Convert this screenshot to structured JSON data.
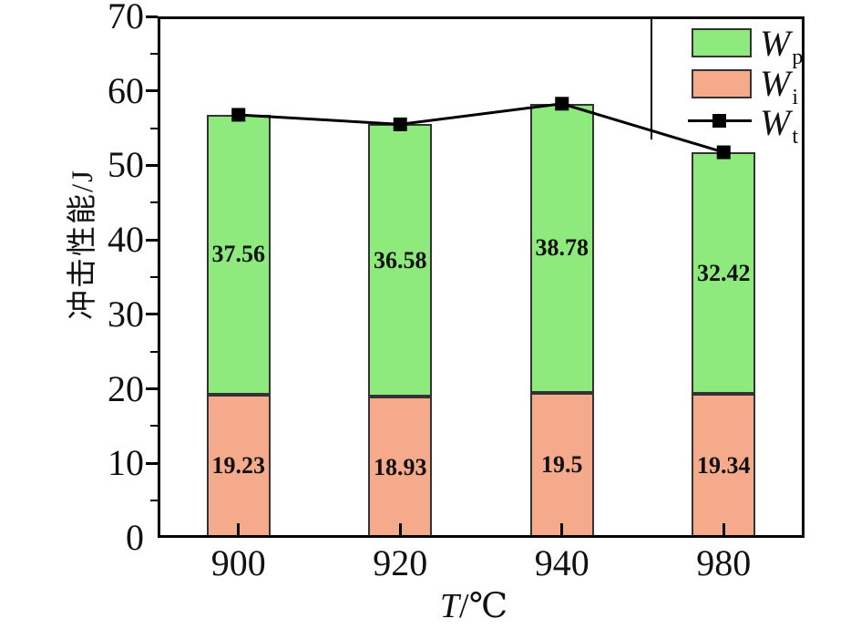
{
  "chart_data": {
    "type": "bar",
    "subtype": "stacked-bars-with-total-line",
    "title": "",
    "xlabel_symbol": "T",
    "xlabel_unit": "/℃",
    "ylabel": "冲击性能/J",
    "categories": [
      "900",
      "920",
      "940",
      "980"
    ],
    "ylim": [
      0,
      70
    ],
    "ytick_major_step": 10,
    "ytick_minor_step": 5,
    "ytick_labels": [
      "0",
      "10",
      "20",
      "30",
      "40",
      "50",
      "60",
      "70"
    ],
    "grid": false,
    "legend_position": "top-right-inside",
    "series": [
      {
        "id": "Wp",
        "type": "bar",
        "symbol": "W",
        "subscript": "p",
        "color": "#8FEA7D",
        "border_color": "#333333",
        "values": [
          37.56,
          36.58,
          38.78,
          32.42
        ],
        "labels": [
          "37.56",
          "36.58",
          "38.78",
          "32.42"
        ]
      },
      {
        "id": "Wi",
        "type": "bar",
        "symbol": "W",
        "subscript": "i",
        "color": "#F5AB8B",
        "border_color": "#333333",
        "values": [
          19.23,
          18.93,
          19.5,
          19.34
        ],
        "labels": [
          "19.23",
          "18.93",
          "19.5",
          "19.34"
        ]
      },
      {
        "id": "Wt",
        "type": "line",
        "symbol": "W",
        "subscript": "t",
        "color": "#000000",
        "marker": "square",
        "values": [
          56.79,
          55.51,
          58.28,
          51.76
        ]
      }
    ],
    "axis_color": "#000000"
  }
}
